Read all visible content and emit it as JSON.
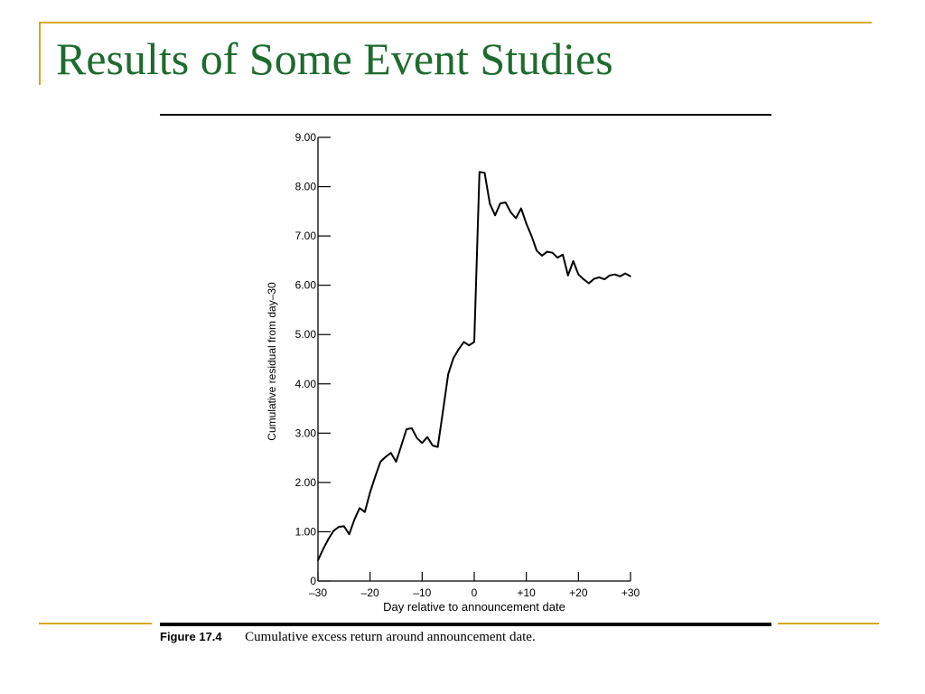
{
  "slide": {
    "title": "Results of Some Event Studies",
    "title_color": "#1E6B2E",
    "accent_color": "#D4A81A"
  },
  "figure": {
    "number": "Figure 17.4",
    "caption": "Cumulative excess return around announcement date."
  },
  "chart_data": {
    "type": "line",
    "xlabel": "Day relative to announcement date",
    "ylabel": "Cumulative residual from day–30",
    "xlim": [
      -30,
      30
    ],
    "ylim": [
      0,
      9
    ],
    "x_ticks": [
      -30,
      -20,
      -10,
      0,
      10,
      20,
      30
    ],
    "x_tick_labels": [
      "–30",
      "–20",
      "–10",
      "0",
      "+10",
      "+20",
      "+30"
    ],
    "y_ticks": [
      0,
      1,
      2,
      3,
      4,
      5,
      6,
      7,
      8,
      9
    ],
    "y_tick_labels": [
      "0",
      "1.00",
      "2.00",
      "3.00",
      "4.00",
      "5.00",
      "6.00",
      "7.00",
      "8.00",
      "9.00"
    ],
    "grid": false,
    "series": [
      {
        "x": [
          -30,
          -29,
          -28,
          -27,
          -26,
          -25,
          -24,
          -23,
          -22,
          -21,
          -20,
          -19,
          -18,
          -17,
          -16,
          -15,
          -14,
          -13,
          -12,
          -11,
          -10,
          -9,
          -8,
          -7,
          -6,
          -5,
          -4,
          -3,
          -2,
          -1,
          0,
          1,
          2,
          3,
          4,
          5,
          6,
          7,
          8,
          9,
          10,
          11,
          12,
          13,
          14,
          15,
          16,
          17,
          18,
          19,
          20,
          21,
          22,
          23,
          24,
          25,
          26,
          27,
          28,
          29,
          30
        ],
        "y": [
          0.42,
          0.65,
          0.85,
          1.02,
          1.1,
          1.11,
          0.95,
          1.25,
          1.48,
          1.4,
          1.8,
          2.12,
          2.42,
          2.52,
          2.6,
          2.42,
          2.75,
          3.08,
          3.1,
          2.9,
          2.8,
          2.92,
          2.75,
          2.72,
          3.45,
          4.2,
          4.52,
          4.7,
          4.85,
          4.78,
          4.85,
          8.3,
          8.28,
          7.65,
          7.42,
          7.66,
          7.68,
          7.48,
          7.36,
          7.56,
          7.25,
          7.0,
          6.7,
          6.6,
          6.68,
          6.66,
          6.56,
          6.62,
          6.2,
          6.49,
          6.22,
          6.12,
          6.04,
          6.13,
          6.16,
          6.12,
          6.2,
          6.22,
          6.18,
          6.24,
          6.18
        ]
      }
    ]
  }
}
